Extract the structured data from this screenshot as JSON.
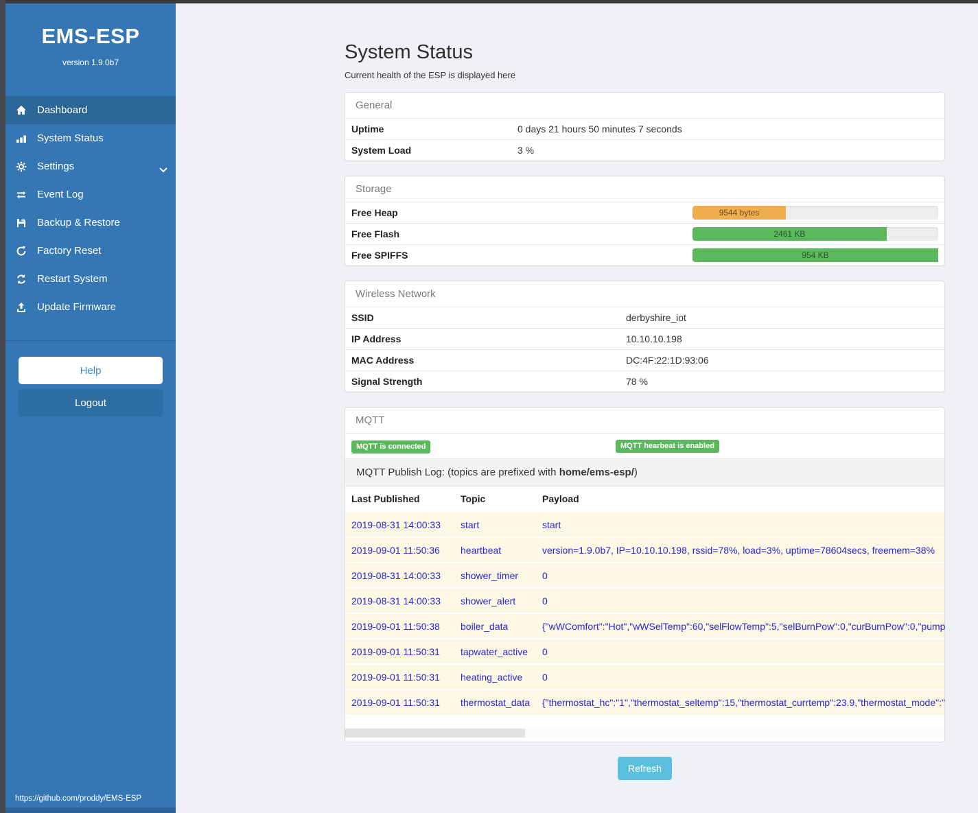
{
  "colors": {
    "sidebar": "#3577b4",
    "sidebar_active": "#2d6799",
    "badge_green": "#5cb85c",
    "bar_orange": "#f0ad4e",
    "bar_green": "#5cb85c",
    "refresh_blue": "#5bc0de"
  },
  "sidebar": {
    "title": "EMS-ESP",
    "version": "version 1.9.0b7",
    "items": [
      {
        "label": "Dashboard",
        "icon": "home-icon",
        "active": true
      },
      {
        "label": "System Status",
        "icon": "bar-chart-icon",
        "active": false
      },
      {
        "label": "Settings",
        "icon": "gear-icon",
        "active": false,
        "chevron": "chevron-down-icon"
      },
      {
        "label": "Event Log",
        "icon": "exchange-icon",
        "active": false
      },
      {
        "label": "Backup & Restore",
        "icon": "floppy-icon",
        "active": false
      },
      {
        "label": "Factory Reset",
        "icon": "rotate-icon",
        "active": false
      },
      {
        "label": "Restart System",
        "icon": "sync-icon",
        "active": false
      },
      {
        "label": "Update Firmware",
        "icon": "upload-icon",
        "active": false
      }
    ],
    "help_label": "Help",
    "logout_label": "Logout",
    "footer_url": "https://github.com/proddy/EMS-ESP"
  },
  "page": {
    "title": "System Status",
    "subtitle": "Current health of the ESP is displayed here",
    "refresh_label": "Refresh"
  },
  "general": {
    "header": "General",
    "rows": [
      {
        "label": "Uptime",
        "value": "0 days 21 hours 50 minutes 7 seconds"
      },
      {
        "label": "System Load",
        "value": "3 %"
      }
    ]
  },
  "storage": {
    "header": "Storage",
    "rows": [
      {
        "label": "Free Heap",
        "value": "9544 bytes",
        "percent": 38,
        "color": "#f0ad4e"
      },
      {
        "label": "Free Flash",
        "value": "2461 KB",
        "percent": 79,
        "color": "#5cb85c"
      },
      {
        "label": "Free SPIFFS",
        "value": "954 KB",
        "percent": 100,
        "color": "#5cb85c"
      }
    ]
  },
  "wireless": {
    "header": "Wireless Network",
    "rows": [
      {
        "label": "SSID",
        "value": "derbyshire_iot"
      },
      {
        "label": "IP Address",
        "value": "10.10.10.198"
      },
      {
        "label": "MAC Address",
        "value": "DC:4F:22:1D:93:06"
      },
      {
        "label": "Signal Strength",
        "value": "78 %"
      }
    ]
  },
  "mqtt": {
    "header": "MQTT",
    "badges": [
      "MQTT is connected",
      "MQTT hearbeat is enabled"
    ],
    "log_title_prefix": "MQTT Publish Log: (topics are prefixed with ",
    "log_title_bold": "home/ems-esp/",
    "log_title_suffix": ")",
    "columns": [
      "Last Published",
      "Topic",
      "Payload"
    ],
    "rows": [
      [
        "2019-08-31 14:00:33",
        "start",
        "start"
      ],
      [
        "2019-09-01 11:50:36",
        "heartbeat",
        "version=1.9.0b7, IP=10.10.10.198, rssid=78%, load=3%, uptime=78604secs, freemem=38%"
      ],
      [
        "2019-08-31 14:00:33",
        "shower_timer",
        "0"
      ],
      [
        "2019-08-31 14:00:33",
        "shower_alert",
        "0"
      ],
      [
        "2019-09-01 11:50:38",
        "boiler_data",
        "{\"wWComfort\":\"Hot\",\"wWSelTemp\":60,\"selFlowTemp\":5,\"selBurnPow\":0,\"curBurnPow\":0,\"pump"
      ],
      [
        "2019-09-01 11:50:31",
        "tapwater_active",
        "0"
      ],
      [
        "2019-09-01 11:50:31",
        "heating_active",
        "0"
      ],
      [
        "2019-09-01 11:50:31",
        "thermostat_data",
        "{\"thermostat_hc\":\"1\",\"thermostat_seltemp\":15,\"thermostat_currtemp\":23.9,\"thermostat_mode\":\""
      ]
    ]
  }
}
